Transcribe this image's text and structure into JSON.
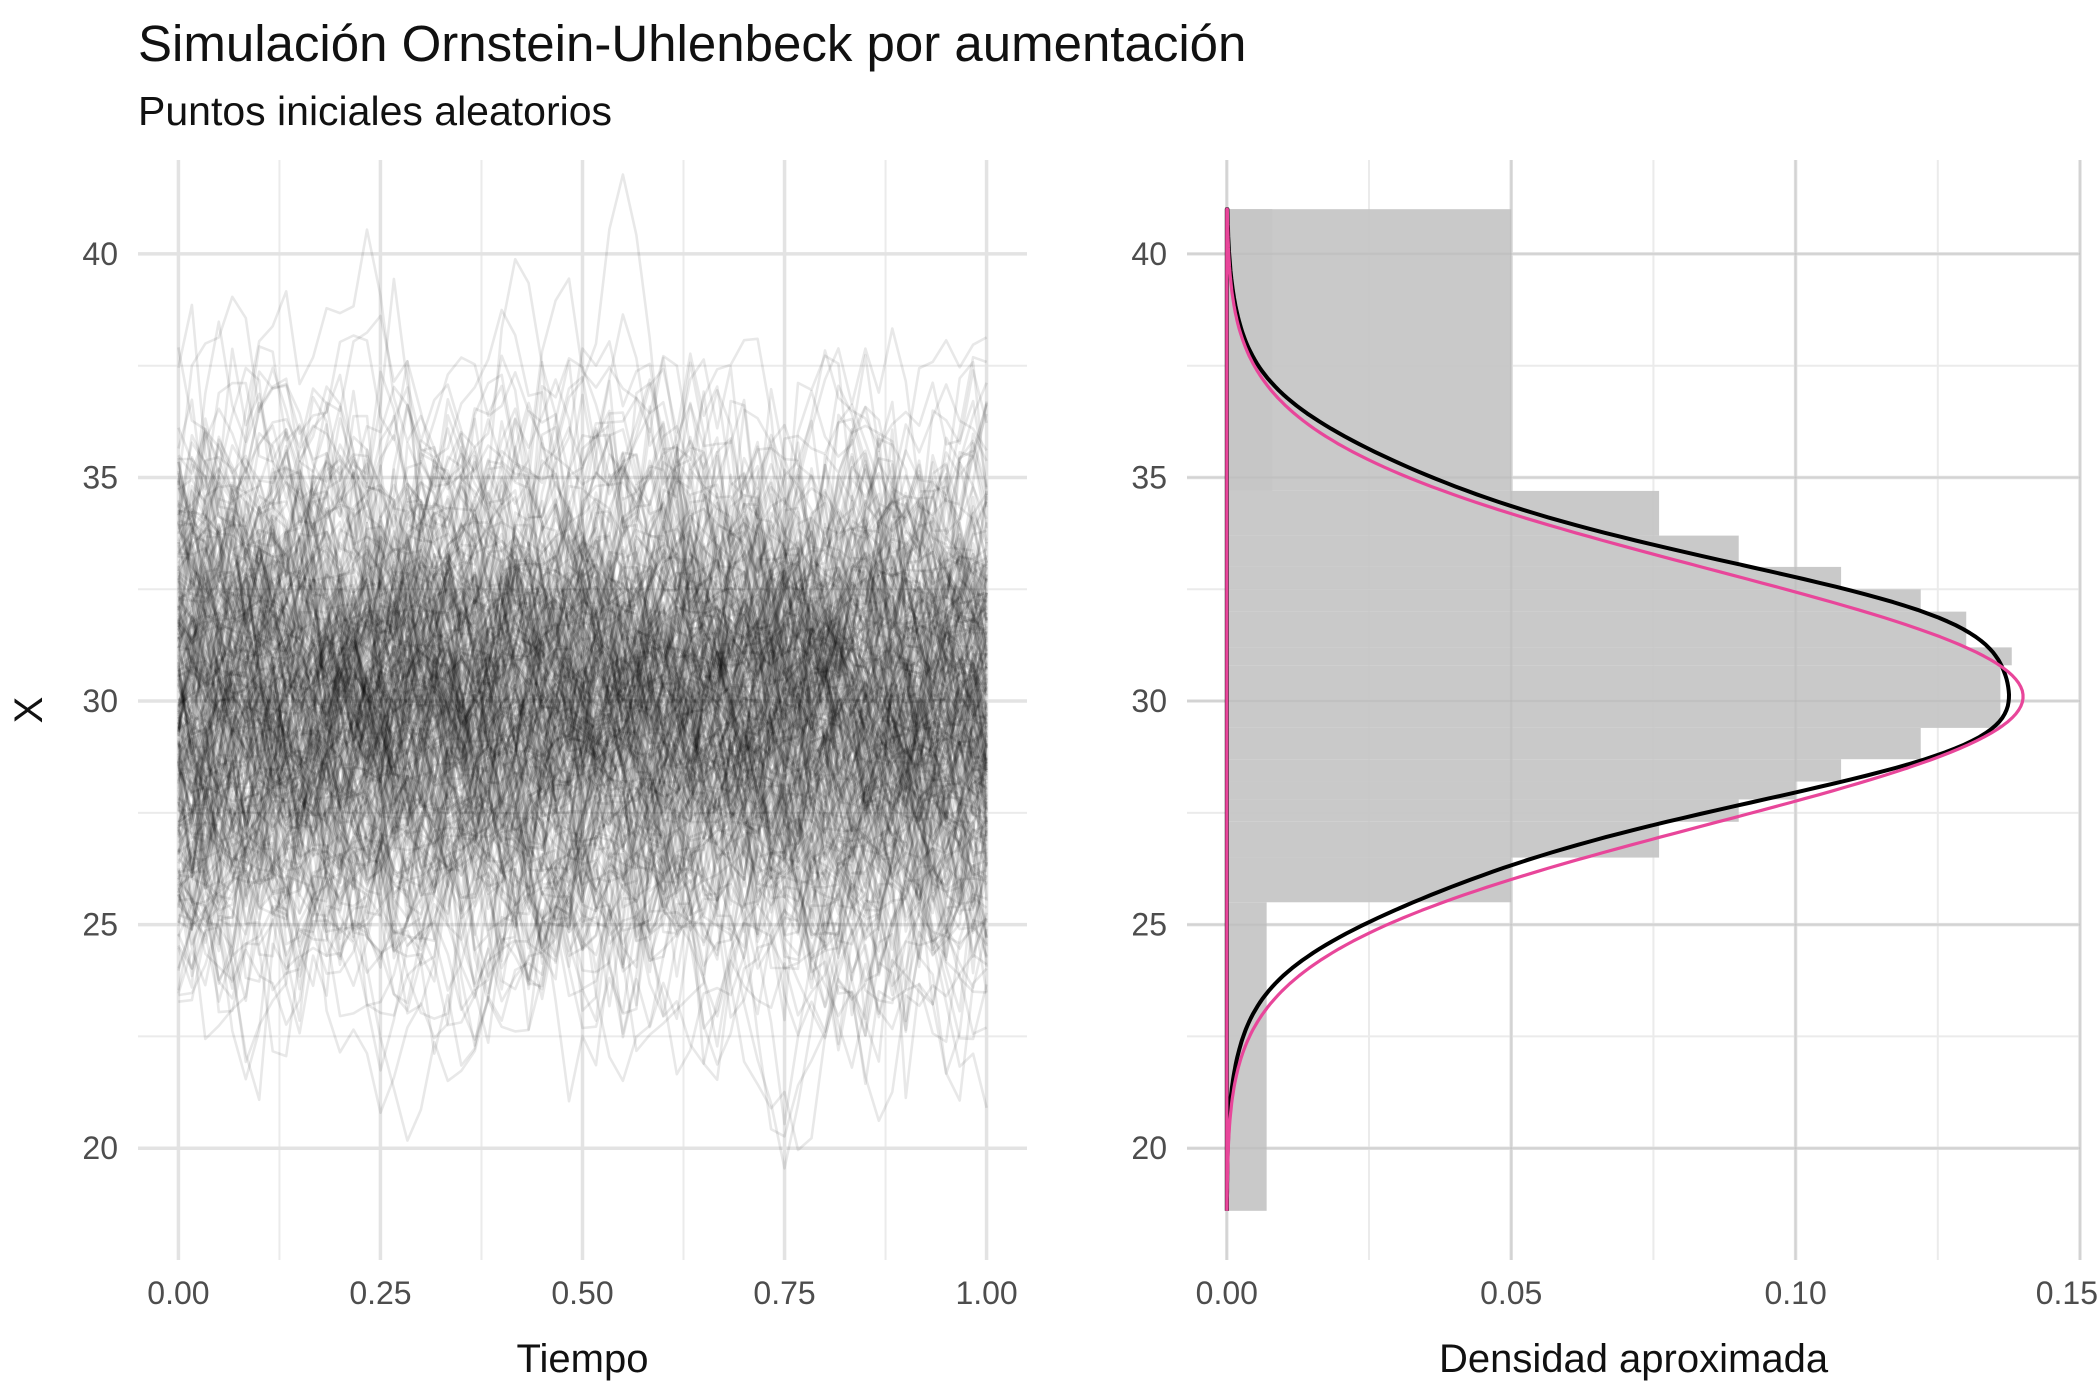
{
  "title": "Simulación Ornstein-Uhlenbeck por aumentación",
  "subtitle": "Puntos iniciales aleatorios",
  "chart_data": [
    {
      "type": "line",
      "panel": "left",
      "xlabel": "Tiempo",
      "ylabel": "X",
      "xlim": [
        -0.05,
        1.05
      ],
      "ylim": [
        17.5,
        42.1
      ],
      "x_ticks": [
        0.0,
        0.25,
        0.5,
        0.75,
        1.0
      ],
      "x_tick_labels": [
        "0.00",
        "0.25",
        "0.50",
        "0.75",
        "1.00"
      ],
      "y_ticks": [
        20,
        25,
        30,
        35,
        40
      ],
      "y_tick_labels": [
        "20",
        "25",
        "30",
        "35",
        "40"
      ],
      "grid": true,
      "paths": {
        "count": 300,
        "time_steps": 60,
        "mean": 30,
        "sd": 2.85,
        "reversion": 6,
        "color": "#000000",
        "opacity": 0.09
      }
    },
    {
      "type": "bar",
      "panel": "right",
      "orientation": "horizontal",
      "xlabel": "Densidad aproximada",
      "ylabel": "",
      "xlim": [
        -0.007,
        0.15
      ],
      "ylim": [
        17.5,
        42.1
      ],
      "x_ticks": [
        0.0,
        0.05,
        0.1,
        0.15
      ],
      "x_tick_labels": [
        "0.00",
        "0.05",
        "0.10",
        "0.15"
      ],
      "y_ticks": [
        20,
        25,
        30,
        35,
        40
      ],
      "y_tick_labels": [
        "20",
        "25",
        "30",
        "35",
        "40"
      ],
      "grid": true,
      "histogram": {
        "color": "#c6c6c6",
        "bins": [
          {
            "y0": 18.6,
            "y1": 25.5,
            "density": 0.007
          },
          {
            "y0": 25.5,
            "y1": 26.5,
            "density": 0.05
          },
          {
            "y0": 26.5,
            "y1": 27.3,
            "density": 0.076
          },
          {
            "y0": 27.3,
            "y1": 27.8,
            "density": 0.09
          },
          {
            "y0": 27.8,
            "y1": 28.2,
            "density": 0.1
          },
          {
            "y0": 28.2,
            "y1": 28.7,
            "density": 0.108
          },
          {
            "y0": 28.7,
            "y1": 29.4,
            "density": 0.122
          },
          {
            "y0": 29.4,
            "y1": 30.8,
            "density": 0.136
          },
          {
            "y0": 30.8,
            "y1": 31.2,
            "density": 0.138
          },
          {
            "y0": 31.2,
            "y1": 32.0,
            "density": 0.13
          },
          {
            "y0": 32.0,
            "y1": 32.5,
            "density": 0.122
          },
          {
            "y0": 32.5,
            "y1": 33.0,
            "density": 0.108
          },
          {
            "y0": 33.0,
            "y1": 33.7,
            "density": 0.09
          },
          {
            "y0": 33.7,
            "y1": 34.7,
            "density": 0.076
          },
          {
            "y0": 34.7,
            "y1": 41.0,
            "density": 0.05
          },
          {
            "y0": 34.7,
            "y1": 41.0,
            "density": 0.008
          }
        ]
      },
      "density_lines": [
        {
          "color": "#000000",
          "kind": "empirical",
          "mean": 30.35,
          "sd": 2.82,
          "peak": 0.1415
        },
        {
          "color": "#e8469a",
          "kind": "theoretical",
          "mean": 30.1,
          "sd": 2.85,
          "peak": 0.14
        }
      ]
    }
  ]
}
